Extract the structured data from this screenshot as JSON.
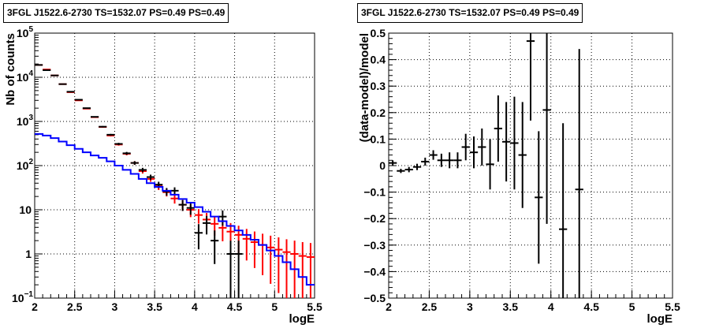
{
  "chart_data": [
    {
      "type": "histogram",
      "title": "3FGL J1522.6-2730 TS=1532.07 PS=0.49 PS=0.49",
      "xlabel": "logE",
      "ylabel": "Nb of counts",
      "xlim": [
        2,
        5.5
      ],
      "ylim": [
        0.1,
        100000
      ],
      "yscale": "log",
      "grid": true,
      "x_ticks": [
        "2",
        "2.5",
        "3",
        "3.5",
        "4",
        "4.5",
        "5",
        "5.5"
      ],
      "y_ticks": [
        {
          "v": 0.1,
          "label": "10",
          "sup": "−1"
        },
        {
          "v": 1,
          "label": "1",
          "sup": ""
        },
        {
          "v": 10,
          "label": "10",
          "sup": ""
        },
        {
          "v": 100,
          "label": "10",
          "sup": "2"
        },
        {
          "v": 1000,
          "label": "10",
          "sup": "3"
        },
        {
          "v": 10000,
          "label": "10",
          "sup": "4"
        },
        {
          "v": 100000,
          "label": "10",
          "sup": "5"
        }
      ],
      "bin_width": 0.1,
      "series": [
        {
          "color": "#ff0000",
          "style": "errorbar",
          "x": [
            2.05,
            2.15,
            2.25,
            2.35,
            2.45,
            2.55,
            2.65,
            2.75,
            2.85,
            2.95,
            3.05,
            3.15,
            3.25,
            3.35,
            3.45,
            3.55,
            3.65,
            3.75,
            3.85,
            3.95,
            4.05,
            4.15,
            4.25,
            4.35,
            4.45,
            4.55,
            4.65,
            4.75,
            4.85,
            4.95,
            5.05,
            5.15,
            5.25,
            5.35,
            5.45
          ],
          "y": [
            19000,
            15000,
            11000,
            7000,
            4600,
            3000,
            1950,
            1250,
            750,
            480,
            300,
            185,
            115,
            75,
            50,
            34,
            25,
            18,
            13,
            10,
            7.6,
            6,
            4.8,
            3.9,
            3.2,
            2.7,
            2.2,
            1.85,
            1.6,
            1.4,
            1.25,
            1.1,
            1.0,
            0.9,
            0.85
          ],
          "err": [
            140,
            120,
            105,
            84,
            68,
            55,
            44,
            35,
            27,
            22,
            17,
            14,
            11,
            9,
            7,
            6,
            5,
            4.2,
            3.6,
            3.2,
            2.75,
            2.45,
            2.2,
            1.97,
            1.8,
            1.65,
            1.49,
            1.37,
            1.27,
            1.19,
            1.12,
            1.05,
            1.0,
            0.95,
            0.92
          ]
        },
        {
          "color": "#000000",
          "style": "errorbar",
          "x": [
            2.05,
            2.15,
            2.25,
            2.35,
            2.45,
            2.55,
            2.65,
            2.75,
            2.85,
            2.95,
            3.05,
            3.15,
            3.25,
            3.35,
            3.45,
            3.55,
            3.65,
            3.75,
            3.85,
            3.95,
            4.05,
            4.15,
            4.25,
            4.35,
            4.45,
            4.55
          ],
          "y": [
            19000,
            14500,
            11000,
            7000,
            4700,
            3100,
            2000,
            1270,
            760,
            500,
            310,
            190,
            115,
            80,
            55,
            37,
            26,
            27,
            13,
            11,
            3,
            5,
            2,
            7,
            1,
            1
          ],
          "err": [
            138,
            120,
            105,
            84,
            69,
            56,
            45,
            36,
            28,
            22,
            18,
            14,
            11,
            9,
            7.4,
            6.1,
            5.1,
            5.2,
            3.6,
            3.3,
            1.73,
            2.24,
            1.41,
            2.65,
            1,
            1
          ]
        },
        {
          "color": "#0000ff",
          "style": "step",
          "x": [
            2.05,
            2.15,
            2.25,
            2.35,
            2.45,
            2.55,
            2.65,
            2.75,
            2.85,
            2.95,
            3.05,
            3.15,
            3.25,
            3.35,
            3.45,
            3.55,
            3.65,
            3.75,
            3.85,
            3.95,
            4.05,
            4.15,
            4.25,
            4.35,
            4.45,
            4.55,
            4.65,
            4.75,
            4.85,
            4.95,
            5.05,
            5.15,
            5.25,
            5.35,
            5.45
          ],
          "y": [
            520,
            480,
            420,
            350,
            290,
            240,
            200,
            170,
            150,
            125,
            100,
            80,
            65,
            50,
            40,
            33,
            27,
            22,
            17.5,
            14.5,
            11.5,
            9,
            7,
            5.5,
            4.3,
            3.4,
            2.7,
            2.1,
            1.6,
            1.2,
            0.9,
            0.65,
            0.45,
            0.3,
            0.2
          ]
        }
      ]
    },
    {
      "type": "scatter",
      "title": "3FGL J1522.6-2730 TS=1532.07 PS=0.49 PS=0.49",
      "xlabel": "logE",
      "ylabel": "(data-model)/model",
      "xlim": [
        2,
        5.5
      ],
      "ylim": [
        -0.5,
        0.5
      ],
      "grid": true,
      "x_ticks": [
        "2",
        "2.5",
        "3",
        "3.5",
        "4",
        "4.5",
        "5",
        "5.5"
      ],
      "y_ticks": [
        "−0.5",
        "−0.4",
        "−0.3",
        "−0.2",
        "−0.1",
        "0",
        "0.1",
        "0.2",
        "0.3",
        "0.4",
        "0.5"
      ],
      "bin_width": 0.1,
      "series": [
        {
          "color": "#000000",
          "style": "errorbar",
          "x": [
            2.05,
            2.15,
            2.25,
            2.35,
            2.45,
            2.55,
            2.65,
            2.75,
            2.85,
            2.95,
            3.05,
            3.15,
            3.25,
            3.35,
            3.45,
            3.55,
            3.65,
            3.75,
            3.85,
            3.95,
            4.15,
            4.35
          ],
          "y": [
            0.01,
            -0.02,
            -0.015,
            -0.005,
            0.015,
            0.04,
            0.02,
            0.02,
            0.02,
            0.07,
            0.05,
            0.07,
            0.005,
            0.14,
            0.09,
            0.085,
            0.04,
            0.47,
            -0.12,
            0.21,
            -0.24,
            -0.09
          ],
          "err": [
            0.01,
            0.008,
            0.01,
            0.012,
            0.015,
            0.018,
            0.025,
            0.03,
            0.03,
            0.05,
            0.06,
            0.07,
            0.095,
            0.125,
            0.15,
            0.175,
            0.2,
            0.3,
            0.25,
            0.43,
            0.4,
            0.53
          ]
        }
      ]
    }
  ]
}
